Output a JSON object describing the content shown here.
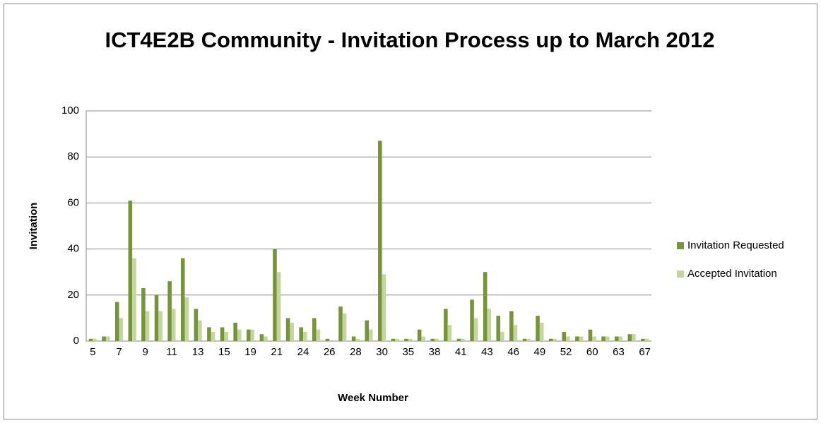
{
  "chart_data": {
    "type": "bar",
    "title": "ICT4E2B Community - Invitation Process up to March 2012",
    "x_label": "Week Number",
    "y_label": "Invitation",
    "categories": [
      "5",
      null,
      "7",
      null,
      "9",
      null,
      "11",
      null,
      "13",
      null,
      "15",
      null,
      "19",
      null,
      "21",
      null,
      "24",
      null,
      "26",
      null,
      "28",
      null,
      "30",
      null,
      "35",
      null,
      "38",
      null,
      "41",
      null,
      "43",
      null,
      "46",
      null,
      "49",
      null,
      "52",
      null,
      "60",
      null,
      "63",
      null,
      "67"
    ],
    "series": [
      {
        "name": "Invitation Requested",
        "color": "#77933c",
        "values": [
          1,
          2,
          17,
          61,
          23,
          20,
          26,
          36,
          14,
          6,
          6,
          8,
          5,
          3,
          40,
          10,
          6,
          10,
          1,
          15,
          2,
          9,
          87,
          1,
          1,
          5,
          1,
          14,
          1,
          18,
          30,
          11,
          13,
          1,
          11,
          1,
          4,
          2,
          5,
          2,
          2,
          3,
          1
        ]
      },
      {
        "name": "Accepted Invitation",
        "color": "#c3d69b",
        "values": [
          1,
          2,
          10,
          36,
          13,
          13,
          14,
          19,
          9,
          4,
          4,
          5,
          5,
          2,
          30,
          8,
          4,
          5,
          0,
          12,
          1,
          5,
          29,
          1,
          1,
          2,
          1,
          7,
          1,
          10,
          14,
          4,
          7,
          1,
          8,
          1,
          2,
          2,
          2,
          2,
          2,
          3,
          1
        ]
      }
    ],
    "ylim": [
      0,
      100
    ],
    "yticks": [
      0,
      20,
      40,
      60,
      80,
      100
    ],
    "grid": true,
    "legend": "right"
  }
}
